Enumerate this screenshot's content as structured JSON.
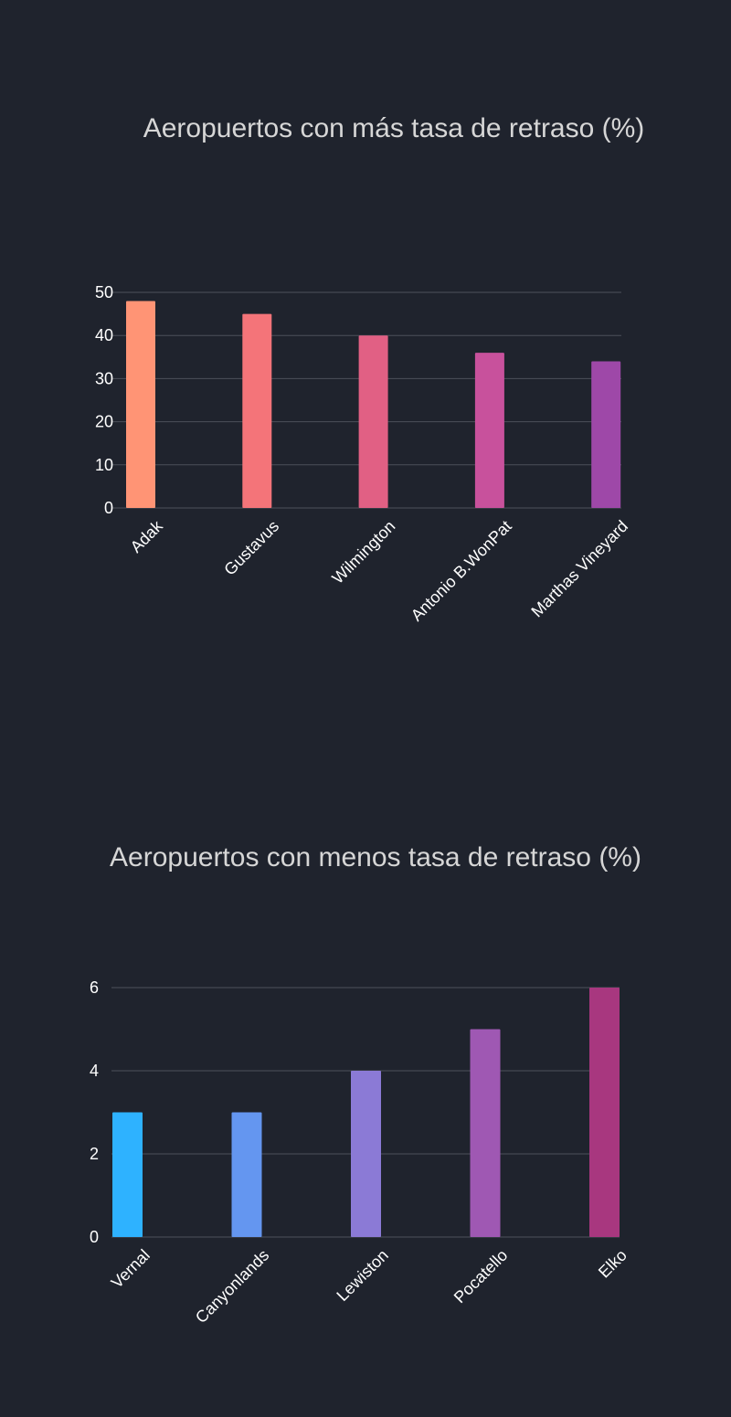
{
  "chart_data": [
    {
      "type": "bar",
      "title": "Aeropuertos con más tasa de retraso (%)",
      "categories": [
        "Adak",
        "Gustavus",
        "Wilmington",
        "Antonio B.WonPat",
        "Marthas Vineyard"
      ],
      "values": [
        48,
        45,
        40,
        36,
        34
      ],
      "colors": [
        "#ff9475",
        "#f47479",
        "#e16084",
        "#c8519c",
        "#9e48a8"
      ],
      "yticks": [
        0,
        10,
        20,
        30,
        40,
        50
      ],
      "ylim": [
        0,
        50
      ],
      "xlabel": "",
      "ylabel": "",
      "grid": true,
      "legend": "none"
    },
    {
      "type": "bar",
      "title": "Aeropuertos con menos tasa de retraso (%)",
      "categories": [
        "Vernal",
        "Canyonlands",
        "Lewiston",
        "Pocatello",
        "Elko"
      ],
      "values": [
        3,
        3,
        4,
        5,
        6
      ],
      "colors": [
        "#2eb2ff",
        "#6496f0",
        "#8b7ad6",
        "#9f58b3",
        "#a8377f"
      ],
      "yticks": [
        0,
        2,
        4,
        6
      ],
      "ylim": [
        0,
        6
      ],
      "xlabel": "",
      "ylabel": "",
      "grid": true,
      "legend": "none"
    }
  ]
}
